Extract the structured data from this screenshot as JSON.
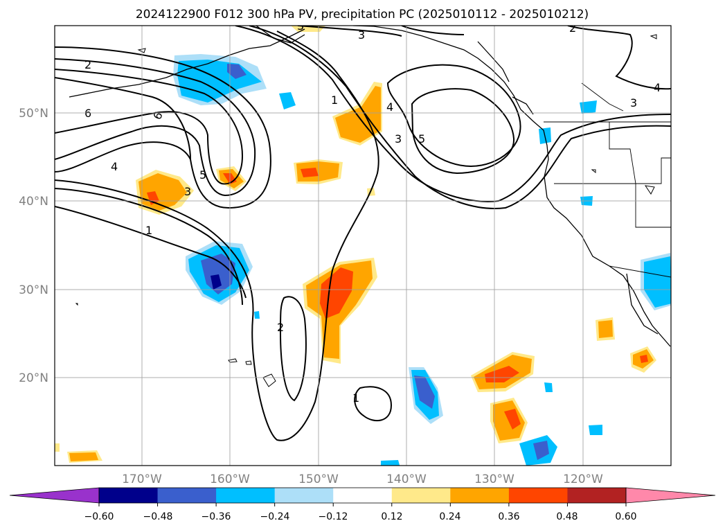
{
  "title": "2024122900 F012 300 hPa PV, precipitation PC (2025010112 - 2025010212)",
  "map": {
    "lat_labels": [
      "50°N",
      "40°N",
      "30°N",
      "20°N"
    ],
    "lon_labels": [
      "170°W",
      "160°W",
      "150°W",
      "140°W",
      "130°W",
      "120°W"
    ],
    "contour_labels": [
      "2",
      "6",
      "6",
      "4",
      "5",
      "3",
      "1",
      "1",
      "4",
      "3",
      "5",
      "3",
      "2",
      "1",
      "3",
      "3",
      "2",
      "4"
    ]
  },
  "colorbar": {
    "tick_labels": [
      "−0.60",
      "−0.48",
      "−0.36",
      "−0.24",
      "−0.12",
      "0.12",
      "0.24",
      "0.36",
      "0.48",
      "0.60"
    ],
    "colors": [
      "#9932CC",
      "#00008B",
      "#3A5FCD",
      "#00BFFF",
      "#ADDFF8",
      "#FFFFFF",
      "#FFE98A",
      "#FFA500",
      "#FF4500",
      "#B22222",
      "#FF88AA"
    ]
  }
}
